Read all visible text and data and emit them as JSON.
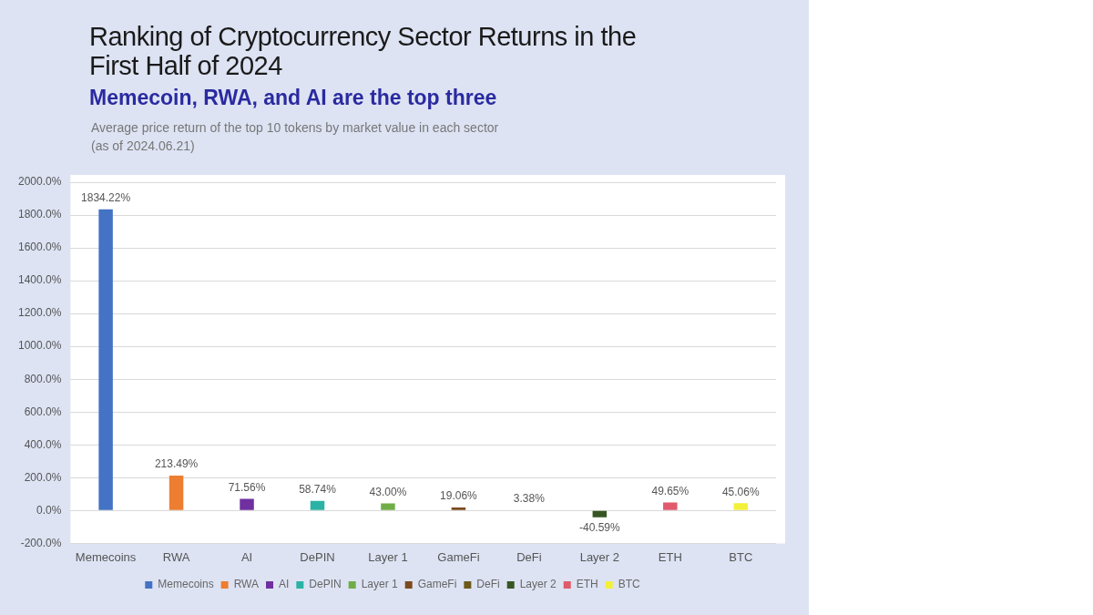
{
  "chart_data": {
    "type": "bar",
    "title": "Ranking of Cryptocurrency Sector Returns in the First Half of 2024",
    "subtitle": "Memecoin, RWA, and AI are the top three",
    "annotations": [
      "Average price return of the top 10 tokens by market value in each sector",
      "(as of 2024.06.21)"
    ],
    "categories": [
      "Memecoins",
      "RWA",
      "AI",
      "DePIN",
      "Layer 1",
      "GameFi",
      "DeFi",
      "Layer 2",
      "ETH",
      "BTC"
    ],
    "series": [
      {
        "name": "Memecoins",
        "color": "#4472c4",
        "values": [
          1834.22,
          null,
          null,
          null,
          null,
          null,
          null,
          null,
          null,
          null
        ],
        "value_labels": [
          "1834.22%",
          null,
          null,
          null,
          null,
          null,
          null,
          null,
          null,
          null
        ]
      },
      {
        "name": "RWA",
        "color": "#ed7d31",
        "values": [
          null,
          213.49,
          null,
          null,
          null,
          null,
          null,
          null,
          null,
          null
        ],
        "value_labels": [
          null,
          "213.49%",
          null,
          null,
          null,
          null,
          null,
          null,
          null,
          null
        ]
      },
      {
        "name": "AI",
        "color": "#7030a0",
        "values": [
          null,
          null,
          71.56,
          null,
          null,
          null,
          null,
          null,
          null,
          null
        ],
        "value_labels": [
          null,
          null,
          "71.56%",
          null,
          null,
          null,
          null,
          null,
          null,
          null
        ]
      },
      {
        "name": "DePIN",
        "color": "#2ab3a5",
        "values": [
          null,
          null,
          null,
          58.74,
          null,
          null,
          null,
          null,
          null,
          null
        ],
        "value_labels": [
          null,
          null,
          null,
          "58.74%",
          null,
          null,
          null,
          null,
          null,
          null
        ]
      },
      {
        "name": "Layer 1",
        "color": "#70ad47",
        "values": [
          null,
          null,
          null,
          null,
          43.0,
          null,
          null,
          null,
          null,
          null
        ],
        "value_labels": [
          null,
          null,
          null,
          null,
          "43.00%",
          null,
          null,
          null,
          null,
          null
        ]
      },
      {
        "name": "GameFi",
        "color": "#7b4a1e",
        "values": [
          null,
          null,
          null,
          null,
          null,
          19.06,
          null,
          null,
          null,
          null
        ],
        "value_labels": [
          null,
          null,
          null,
          null,
          null,
          "19.06%",
          null,
          null,
          null,
          null
        ]
      },
      {
        "name": "DeFi",
        "color": "#6b5a1a",
        "values": [
          null,
          null,
          null,
          null,
          null,
          null,
          3.38,
          null,
          null,
          null
        ],
        "value_labels": [
          null,
          null,
          null,
          null,
          null,
          null,
          "3.38%",
          null,
          null,
          null
        ]
      },
      {
        "name": "Layer 2",
        "color": "#375623",
        "values": [
          null,
          null,
          null,
          null,
          null,
          null,
          null,
          -40.59,
          null,
          null
        ],
        "value_labels": [
          null,
          null,
          null,
          null,
          null,
          null,
          null,
          "-40.59%",
          null,
          null
        ]
      },
      {
        "name": "ETH",
        "color": "#e05a6b",
        "values": [
          null,
          null,
          null,
          null,
          null,
          null,
          null,
          null,
          49.65,
          null
        ],
        "value_labels": [
          null,
          null,
          null,
          null,
          null,
          null,
          null,
          null,
          "49.65%",
          null
        ]
      },
      {
        "name": "BTC",
        "color": "#f3f03a",
        "values": [
          null,
          null,
          null,
          null,
          null,
          null,
          null,
          null,
          null,
          45.06
        ],
        "value_labels": [
          null,
          null,
          null,
          null,
          null,
          null,
          null,
          null,
          null,
          "45.06%"
        ]
      }
    ],
    "ylim": [
      -200,
      2000
    ],
    "yticks": [
      {
        "value": -200,
        "label": "-200.0%"
      },
      {
        "value": 0,
        "label": "0.0%"
      },
      {
        "value": 200,
        "label": "200.0%"
      },
      {
        "value": 400,
        "label": "400.0%"
      },
      {
        "value": 600,
        "label": "600.0%"
      },
      {
        "value": 800,
        "label": "800.0%"
      },
      {
        "value": 1000,
        "label": "1000.0%"
      },
      {
        "value": 1200,
        "label": "1200.0%"
      },
      {
        "value": 1400,
        "label": "1400.0%"
      },
      {
        "value": 1600,
        "label": "1600.0%"
      },
      {
        "value": 1800,
        "label": "1800.0%"
      },
      {
        "value": 2000,
        "label": "2000.0%"
      }
    ],
    "grid": "y",
    "legend": "bottom"
  }
}
